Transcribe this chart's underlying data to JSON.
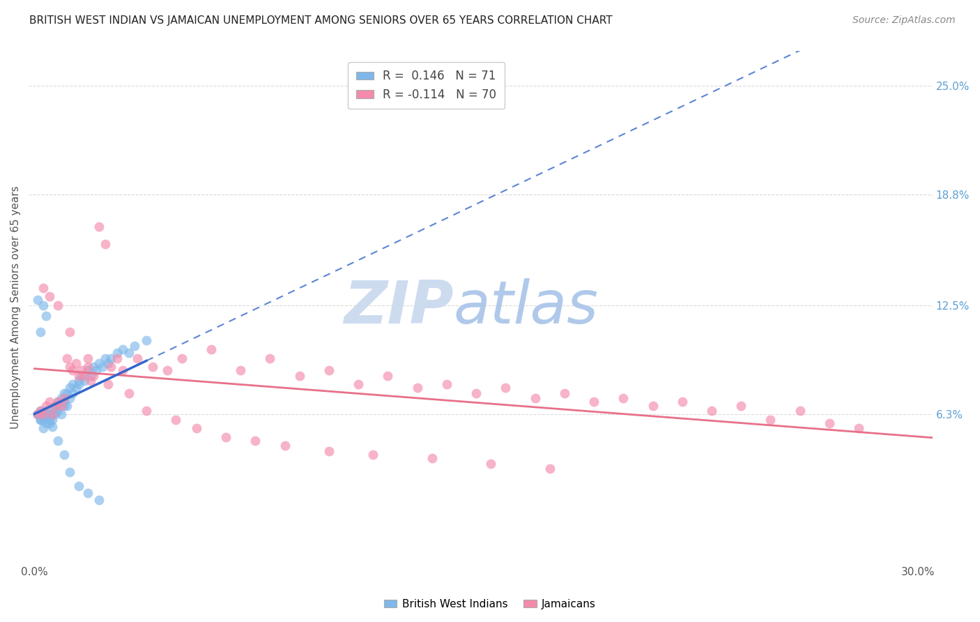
{
  "title": "BRITISH WEST INDIAN VS JAMAICAN UNEMPLOYMENT AMONG SENIORS OVER 65 YEARS CORRELATION CHART",
  "source": "Source: ZipAtlas.com",
  "ylabel": "Unemployment Among Seniors over 65 years",
  "color_bwi": "#7EB8EA",
  "color_jam": "#F48BAB",
  "trend_color_bwi": "#3366CC",
  "trend_color_jam": "#E8708A",
  "watermark_zip": "ZIP",
  "watermark_atlas": "atlas",
  "watermark_color_zip": "#C8D8EE",
  "watermark_color_atlas": "#A8C4E8",
  "R_bwi": 0.146,
  "N_bwi": 71,
  "R_jam": -0.114,
  "N_jam": 70,
  "xlim": [
    -0.002,
    0.305
  ],
  "ylim": [
    -0.022,
    0.27
  ],
  "xtick_vals": [
    0.0,
    0.05,
    0.1,
    0.15,
    0.2,
    0.25,
    0.3
  ],
  "xtick_labels": [
    "0.0%",
    "",
    "",
    "",
    "",
    "",
    "30.0%"
  ],
  "ytick_vals_right": [
    0.25,
    0.188,
    0.125,
    0.063
  ],
  "ytick_labels_right": [
    "25.0%",
    "18.8%",
    "12.5%",
    "6.3%"
  ],
  "legend_fontsize": 12,
  "title_fontsize": 11,
  "source_fontsize": 10,
  "ylabel_fontsize": 11,
  "bwi_x": [
    0.001,
    0.001,
    0.001,
    0.002,
    0.002,
    0.002,
    0.002,
    0.002,
    0.003,
    0.003,
    0.003,
    0.003,
    0.003,
    0.004,
    0.004,
    0.004,
    0.004,
    0.005,
    0.005,
    0.005,
    0.005,
    0.006,
    0.006,
    0.006,
    0.007,
    0.007,
    0.007,
    0.008,
    0.008,
    0.008,
    0.009,
    0.009,
    0.01,
    0.01,
    0.01,
    0.011,
    0.011,
    0.012,
    0.012,
    0.013,
    0.013,
    0.014,
    0.015,
    0.015,
    0.016,
    0.017,
    0.018,
    0.019,
    0.02,
    0.021,
    0.022,
    0.023,
    0.024,
    0.025,
    0.026,
    0.028,
    0.03,
    0.032,
    0.034,
    0.038,
    0.001,
    0.002,
    0.003,
    0.004,
    0.006,
    0.008,
    0.01,
    0.012,
    0.015,
    0.018,
    0.022
  ],
  "bwi_y": [
    0.063,
    0.063,
    0.063,
    0.063,
    0.063,
    0.065,
    0.06,
    0.06,
    0.063,
    0.062,
    0.063,
    0.06,
    0.055,
    0.063,
    0.062,
    0.058,
    0.065,
    0.063,
    0.06,
    0.065,
    0.058,
    0.063,
    0.063,
    0.06,
    0.065,
    0.063,
    0.068,
    0.068,
    0.065,
    0.07,
    0.063,
    0.072,
    0.068,
    0.07,
    0.075,
    0.068,
    0.075,
    0.072,
    0.078,
    0.075,
    0.08,
    0.078,
    0.08,
    0.082,
    0.085,
    0.082,
    0.088,
    0.085,
    0.09,
    0.088,
    0.092,
    0.09,
    0.095,
    0.092,
    0.095,
    0.098,
    0.1,
    0.098,
    0.102,
    0.105,
    0.128,
    0.11,
    0.125,
    0.119,
    0.056,
    0.048,
    0.04,
    0.03,
    0.022,
    0.018,
    0.014
  ],
  "jam_x": [
    0.001,
    0.002,
    0.003,
    0.004,
    0.005,
    0.006,
    0.007,
    0.008,
    0.009,
    0.01,
    0.011,
    0.012,
    0.013,
    0.014,
    0.015,
    0.016,
    0.017,
    0.018,
    0.019,
    0.02,
    0.022,
    0.024,
    0.026,
    0.028,
    0.03,
    0.035,
    0.04,
    0.045,
    0.05,
    0.06,
    0.07,
    0.08,
    0.09,
    0.1,
    0.11,
    0.12,
    0.13,
    0.14,
    0.15,
    0.16,
    0.17,
    0.18,
    0.19,
    0.2,
    0.21,
    0.22,
    0.23,
    0.24,
    0.25,
    0.26,
    0.27,
    0.28,
    0.003,
    0.005,
    0.008,
    0.012,
    0.018,
    0.025,
    0.032,
    0.038,
    0.048,
    0.055,
    0.065,
    0.075,
    0.085,
    0.1,
    0.115,
    0.135,
    0.155,
    0.175
  ],
  "jam_y": [
    0.063,
    0.065,
    0.063,
    0.068,
    0.07,
    0.063,
    0.068,
    0.07,
    0.068,
    0.072,
    0.095,
    0.09,
    0.088,
    0.092,
    0.085,
    0.088,
    0.085,
    0.09,
    0.082,
    0.085,
    0.17,
    0.16,
    0.09,
    0.095,
    0.088,
    0.095,
    0.09,
    0.088,
    0.095,
    0.1,
    0.088,
    0.095,
    0.085,
    0.088,
    0.08,
    0.085,
    0.078,
    0.08,
    0.075,
    0.078,
    0.072,
    0.075,
    0.07,
    0.072,
    0.068,
    0.07,
    0.065,
    0.068,
    0.06,
    0.065,
    0.058,
    0.055,
    0.135,
    0.13,
    0.125,
    0.11,
    0.095,
    0.08,
    0.075,
    0.065,
    0.06,
    0.055,
    0.05,
    0.048,
    0.045,
    0.042,
    0.04,
    0.038,
    0.035,
    0.032
  ]
}
